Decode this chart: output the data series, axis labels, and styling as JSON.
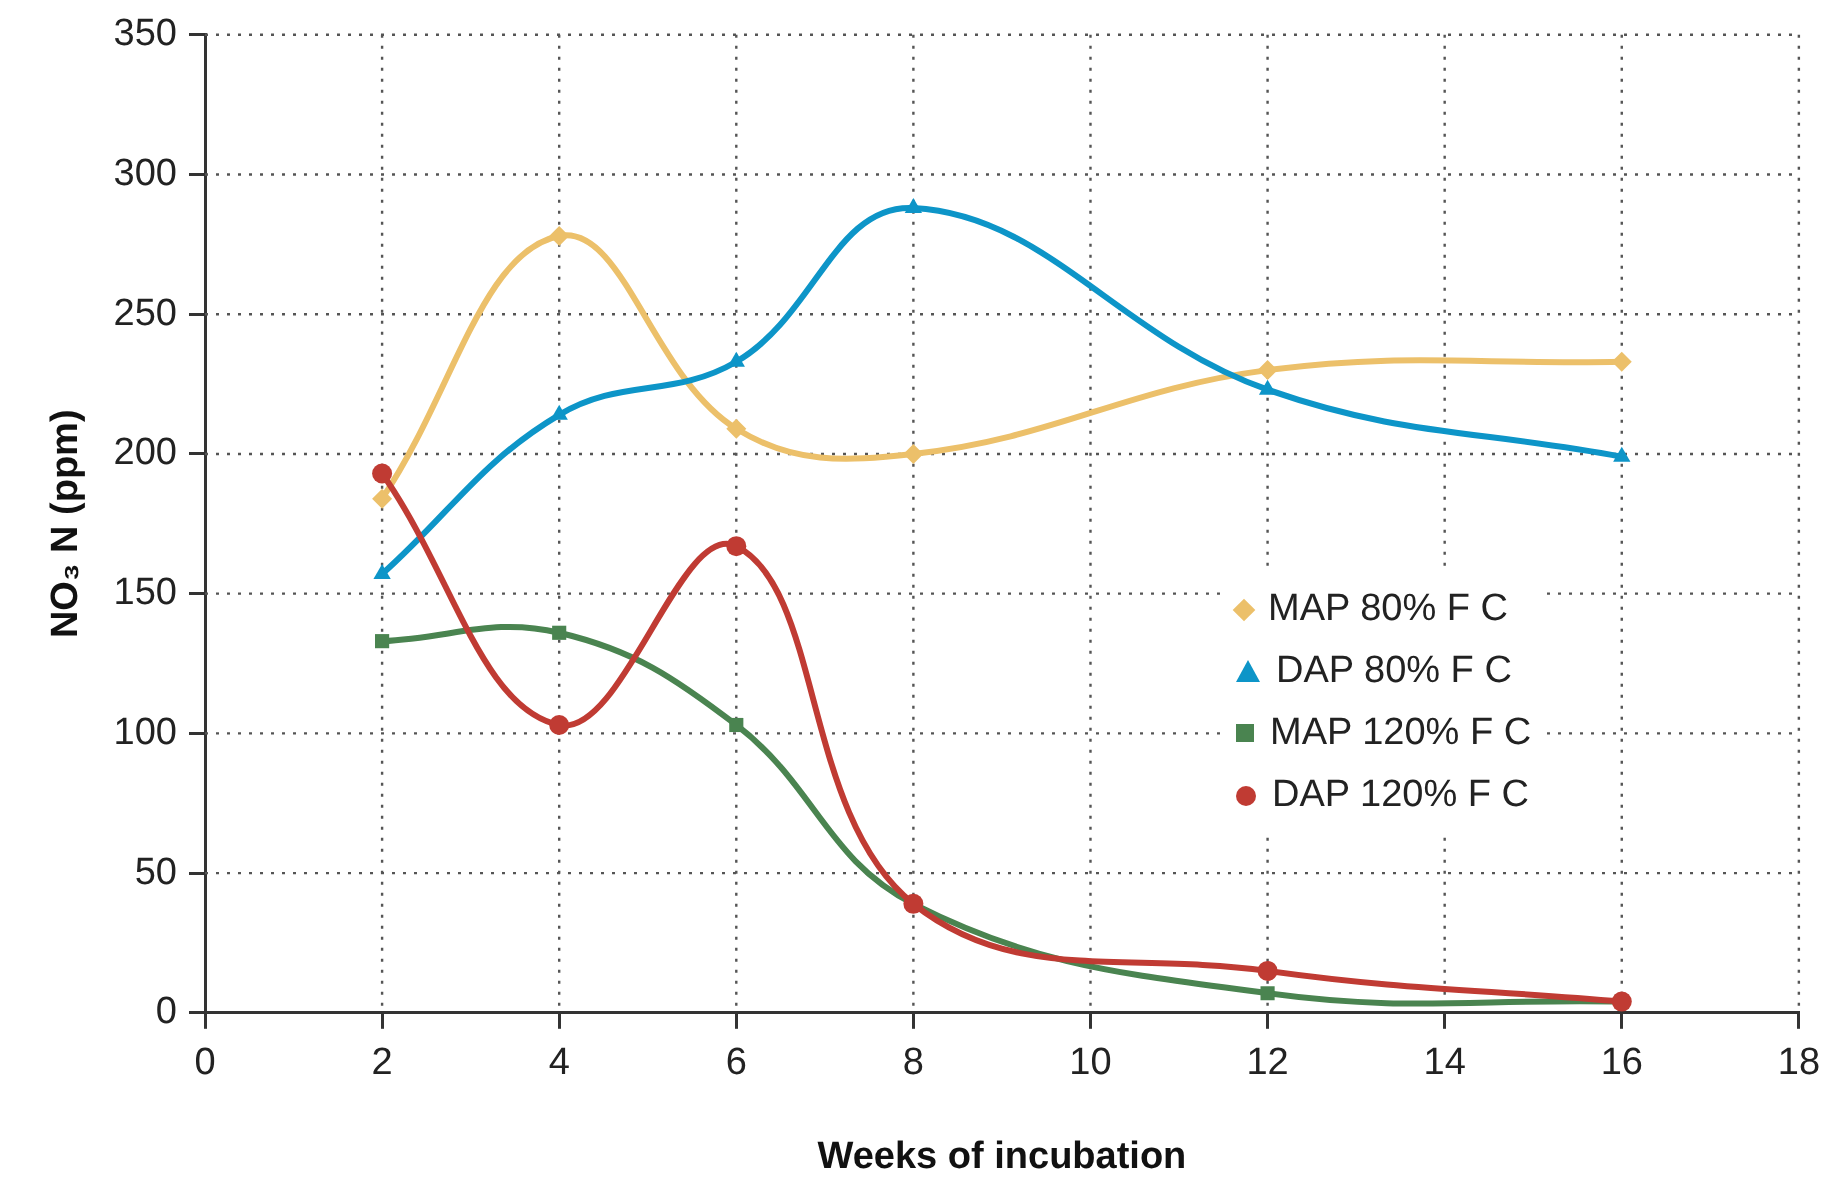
{
  "chart_data": {
    "type": "line",
    "xlabel": "Weeks of incubation",
    "ylabel": "NO₃ N (ppm)",
    "x": [
      2,
      4,
      6,
      8,
      12,
      16
    ],
    "xlim": [
      0,
      18
    ],
    "xticks": [
      0,
      2,
      4,
      6,
      8,
      10,
      12,
      14,
      16,
      18
    ],
    "ylim": [
      0,
      350
    ],
    "yticks": [
      0,
      50,
      100,
      150,
      200,
      250,
      300,
      350
    ],
    "grid": true,
    "legend": "right",
    "series": [
      {
        "name": "MAP 80% F C",
        "color": "#ecc06a",
        "marker": "diamond",
        "values": [
          184,
          278,
          209,
          200,
          230,
          233
        ]
      },
      {
        "name": "DAP 80% F C",
        "color": "#0d95c8",
        "marker": "triangle",
        "values": [
          157,
          214,
          233,
          288,
          223,
          199
        ]
      },
      {
        "name": "MAP 120% F C",
        "color": "#4a8450",
        "marker": "square",
        "values": [
          133,
          136,
          103,
          39,
          7,
          4
        ]
      },
      {
        "name": "DAP 120% F C",
        "color": "#c03b33",
        "marker": "circle",
        "values": [
          193,
          103,
          167,
          39,
          15,
          4
        ]
      }
    ]
  }
}
